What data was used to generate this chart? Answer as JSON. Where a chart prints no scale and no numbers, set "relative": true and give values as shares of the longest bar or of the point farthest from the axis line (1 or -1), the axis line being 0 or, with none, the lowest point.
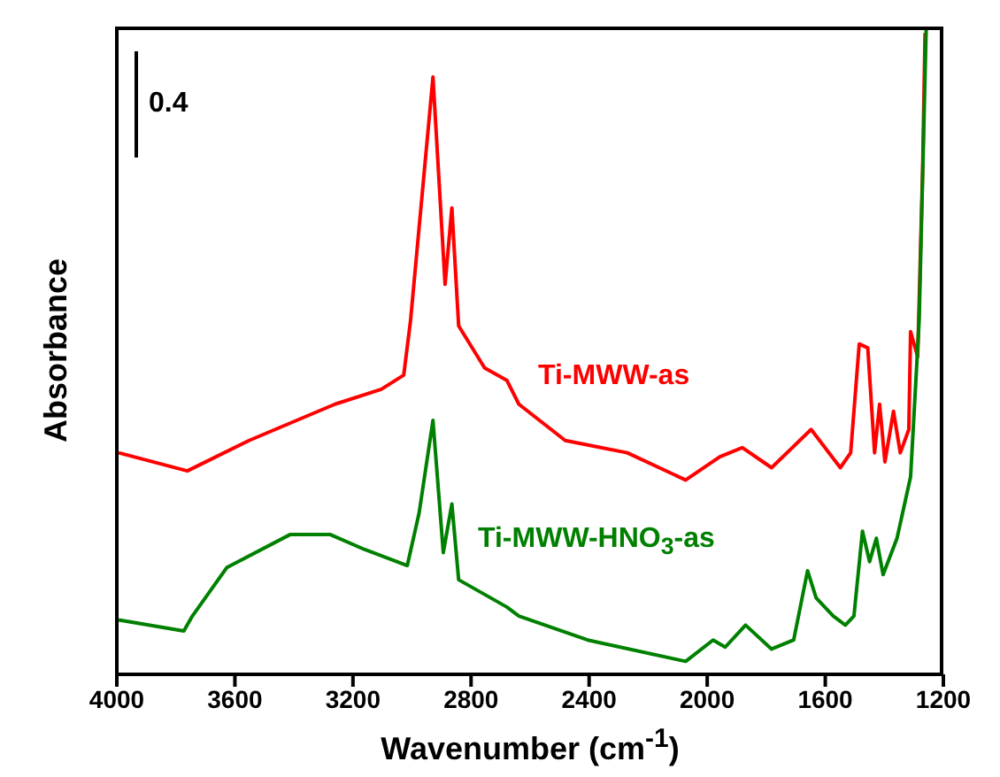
{
  "chart_data": {
    "type": "line",
    "xlabel": "Wavenumber (cm$^{-1}$)",
    "ylabel": "Absorbance",
    "relative": true,
    "xlim": [
      4000,
      1200
    ],
    "xticks": [
      4000,
      3600,
      3200,
      2800,
      2400,
      2000,
      1600,
      1200
    ],
    "grid": false,
    "legend": false,
    "marker": "none",
    "line_style": "solid",
    "annotations": [
      "0.4"
    ],
    "series": [
      {
        "name": "Ti-MWW-as",
        "color": "#ff0000",
        "x": [
          3994,
          3761,
          3552,
          3261,
          3104,
          3028,
          3005,
          2929,
          2888,
          2865,
          2842,
          2754,
          2679,
          2638,
          2481,
          2271,
          2073,
          1957,
          1881,
          1782,
          1648,
          1549,
          1514,
          1485,
          1456,
          1433,
          1416,
          1398,
          1369,
          1346,
          1317,
          1311,
          1287,
          1270,
          1262
        ],
        "values": [
          0.342,
          0.314,
          0.361,
          0.417,
          0.44,
          0.462,
          0.546,
          0.922,
          0.602,
          0.72,
          0.538,
          0.473,
          0.454,
          0.417,
          0.361,
          0.342,
          0.3,
          0.336,
          0.35,
          0.319,
          0.378,
          0.319,
          0.342,
          0.51,
          0.504,
          0.342,
          0.417,
          0.328,
          0.406,
          0.342,
          0.378,
          0.529,
          0.49,
          0.782,
          0.99
        ]
      },
      {
        "name": "Ti-MWW-HNO$_{3}$-as",
        "color": "#008000",
        "x": [
          3994,
          3773,
          3744,
          3627,
          3412,
          3278,
          3162,
          3016,
          2976,
          2929,
          2894,
          2865,
          2842,
          2679,
          2638,
          2405,
          2073,
          1980,
          1939,
          1870,
          1782,
          1707,
          1660,
          1631,
          1573,
          1532,
          1503,
          1474,
          1450,
          1427,
          1404,
          1357,
          1311,
          1282,
          1258
        ],
        "values": [
          0.084,
          0.067,
          0.09,
          0.165,
          0.216,
          0.216,
          0.193,
          0.168,
          0.249,
          0.392,
          0.188,
          0.263,
          0.146,
          0.104,
          0.09,
          0.053,
          0.02,
          0.053,
          0.042,
          0.076,
          0.039,
          0.053,
          0.16,
          0.118,
          0.09,
          0.076,
          0.09,
          0.221,
          0.174,
          0.21,
          0.154,
          0.21,
          0.305,
          0.546,
          1.0
        ]
      }
    ]
  }
}
